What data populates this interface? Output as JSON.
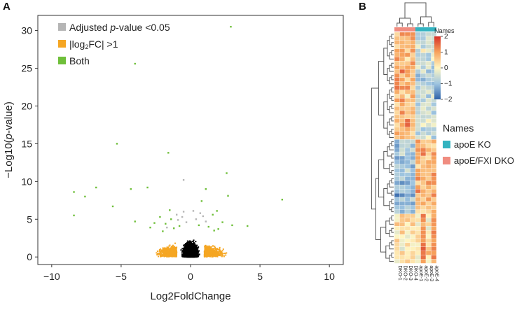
{
  "panel_a": {
    "letter": "A"
  },
  "panel_b": {
    "letter": "B"
  },
  "chart_data": [
    {
      "type": "scatter",
      "title": "",
      "xlabel": "Log2FoldChange",
      "ylabel_parts": [
        "−Log10(",
        "p",
        "-value)"
      ],
      "xlim": [
        -11,
        11
      ],
      "ylim": [
        -1,
        32
      ],
      "x_ticks": [
        -10,
        -5,
        0,
        5,
        10
      ],
      "x_tick_labels": [
        "−10",
        "−5",
        "0",
        "5",
        "10"
      ],
      "y_ticks": [
        0,
        5,
        10,
        15,
        20,
        25,
        30
      ],
      "y_tick_labels": [
        "0",
        "5",
        "10",
        "15",
        "20",
        "25",
        "30"
      ],
      "legend": [
        {
          "parts": [
            "Adjusted ",
            "p",
            "-value <0.05"
          ],
          "color": "#b5b5b5"
        },
        {
          "parts": [
            "|log",
            "2",
            "FC| >1"
          ],
          "color": "#f5a623"
        },
        {
          "parts": [
            "Both"
          ],
          "color": "#6fbf3a"
        }
      ],
      "series": [
        {
          "name": "Adjusted p-value <0.05",
          "color": "#b5b5b5",
          "points": [
            [
              -0.9,
              4.9
            ],
            [
              -0.6,
              5.3
            ],
            [
              -0.5,
              6.0
            ],
            [
              -0.3,
              4.6
            ],
            [
              0.4,
              5.0
            ],
            [
              0.7,
              5.8
            ],
            [
              0.9,
              5.4
            ],
            [
              1.1,
              4.7
            ],
            [
              -1.0,
              5.6
            ],
            [
              0.2,
              6.1
            ],
            [
              -1.7,
              3.9
            ],
            [
              -0.5,
              10.2
            ]
          ]
        },
        {
          "name": "Both",
          "color": "#6fbf3a",
          "points": [
            [
              2.9,
              30.5
            ],
            [
              -4.0,
              25.6
            ],
            [
              -1.6,
              13.8
            ],
            [
              2.6,
              11.1
            ],
            [
              -5.3,
              15.0
            ],
            [
              -8.4,
              8.6
            ],
            [
              -6.8,
              9.2
            ],
            [
              -7.6,
              8.0
            ],
            [
              -4.3,
              9.0
            ],
            [
              -3.1,
              9.2
            ],
            [
              1.1,
              9.0
            ],
            [
              2.7,
              8.1
            ],
            [
              0.8,
              7.4
            ],
            [
              -5.6,
              6.7
            ],
            [
              -8.4,
              5.5
            ],
            [
              -4.0,
              4.7
            ],
            [
              -2.2,
              5.3
            ],
            [
              -1.5,
              6.2
            ],
            [
              -1.8,
              4.4
            ],
            [
              -1.2,
              3.8
            ],
            [
              1.6,
              5.6
            ],
            [
              2.3,
              4.6
            ],
            [
              4.1,
              4.1
            ],
            [
              6.6,
              7.6
            ],
            [
              -2.6,
              4.5
            ],
            [
              1.9,
              6.1
            ],
            [
              -2.9,
              3.9
            ],
            [
              1.3,
              4.0
            ],
            [
              -1.4,
              5.0
            ],
            [
              3.0,
              4.2
            ],
            [
              -0.8,
              4.1
            ],
            [
              0.6,
              4.2
            ],
            [
              2.0,
              3.7
            ],
            [
              -2.0,
              3.4
            ],
            [
              1.7,
              3.5
            ]
          ]
        },
        {
          "name": "|log2FC| >1",
          "summary": "dense band of points, |log2FC| between 1 and about 6, p-value mostly below 3.5",
          "x_range": [
            -6,
            6
          ],
          "y_range": [
            0,
            3.5
          ],
          "n": 1400,
          "color": "#f5a623"
        },
        {
          "name": "Not significant",
          "summary": "dense cloud of points around log2FC 0, p-value below about 4.5",
          "x_range": [
            -1.2,
            1.2
          ],
          "y_range": [
            0,
            4.5
          ],
          "n": 2600,
          "color": "#000000"
        }
      ]
    },
    {
      "type": "heatmap",
      "title": "",
      "rows": 56,
      "columns": [
        "DKO-1",
        "DKO-2",
        "DKO-3",
        "DKO-4",
        "apoE-1",
        "apoE-2",
        "apoE-3",
        "apoE-4"
      ],
      "column_labels": [
        "DKO-1",
        "DKO-2",
        "DKO-3",
        "DKO-4",
        "apoE-1",
        "apoE-2",
        "apoE-3",
        "apoE-4"
      ],
      "column_groups": [
        "apoE/FXI DKO",
        "apoE/FXI DKO",
        "apoE/FXI DKO",
        "apoE/FXI DKO",
        "apoE KO",
        "apoE KO",
        "apoE KO",
        "apoE KO"
      ],
      "color_scale": {
        "min": -2,
        "max": 2,
        "ticks": [
          2,
          1,
          0,
          -1,
          -2
        ],
        "tick_labels": [
          "2",
          "1",
          "0",
          "−1",
          "−2"
        ],
        "colors": [
          "#2e62a8",
          "#9fc5e0",
          "#fff6c2",
          "#f7a35c",
          "#d62f27"
        ]
      },
      "annotation_title": "Names",
      "annotation_legend": [
        {
          "label": "apoE KO",
          "color": "#33b3c0"
        },
        {
          "label": "apoE/FXI DKO",
          "color": "#f08c80"
        }
      ]
    }
  ]
}
